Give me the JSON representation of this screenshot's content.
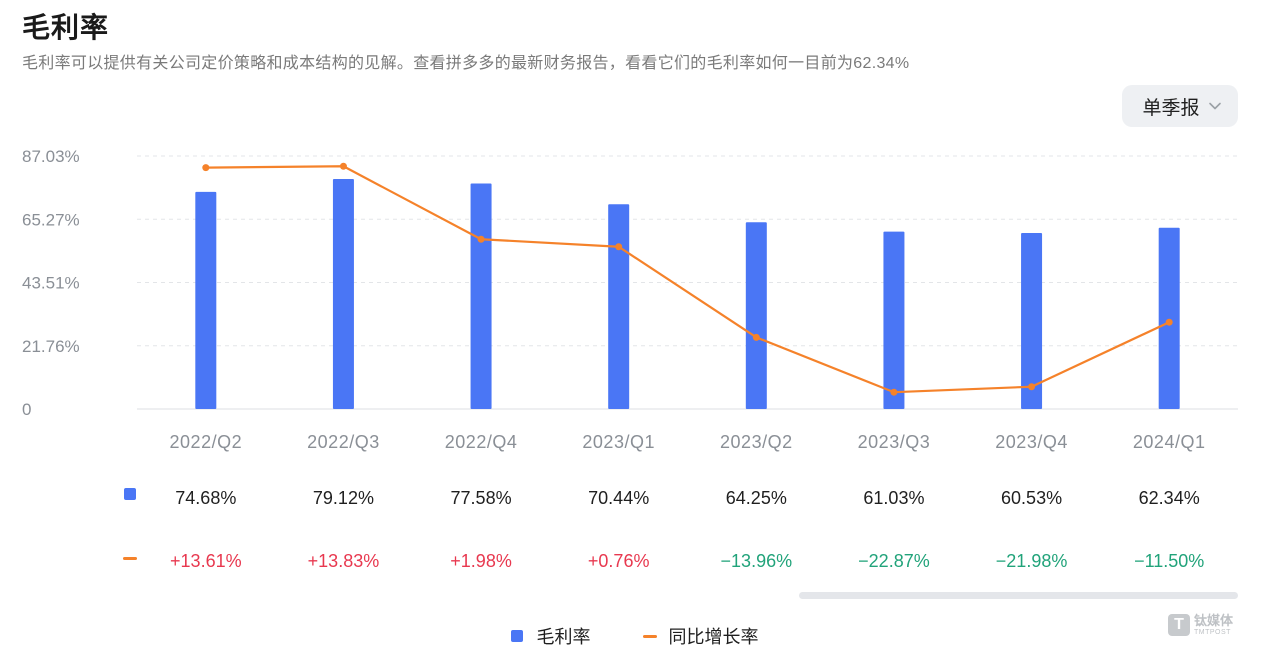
{
  "header": {
    "title": "毛利率",
    "subtitle": "毛利率可以提供有关公司定价策略和成本结构的见解。查看拼多多的最新财务报告，看看它们的毛利率如何一目前为62.34%"
  },
  "period_select": {
    "value": "单季报",
    "icon": "chevron-down-icon"
  },
  "colors": {
    "bar": "#4a76f5",
    "line": "#f5822a",
    "positive": "#e8384f",
    "negative": "#21a37a",
    "grid": "#e3e5e8",
    "axis_text": "#8a8f96"
  },
  "chart_data": {
    "type": "bar",
    "categories": [
      "2022/Q2",
      "2022/Q3",
      "2022/Q4",
      "2023/Q1",
      "2023/Q2",
      "2023/Q3",
      "2023/Q4",
      "2024/Q1"
    ],
    "y_ticks": [
      "0",
      "21.76%",
      "43.51%",
      "65.27%",
      "87.03%"
    ],
    "ylim": [
      0,
      87.03
    ],
    "grid": true,
    "legend_placement": "bottom-center",
    "series": [
      {
        "name": "毛利率",
        "type": "bar",
        "values": [
          74.68,
          79.12,
          77.58,
          70.44,
          64.25,
          61.03,
          60.53,
          62.34
        ],
        "labels": [
          "74.68%",
          "79.12%",
          "77.58%",
          "70.44%",
          "64.25%",
          "61.03%",
          "60.53%",
          "62.34%"
        ]
      },
      {
        "name": "同比增长率",
        "type": "line",
        "values": [
          13.61,
          13.83,
          1.98,
          0.76,
          -13.96,
          -22.87,
          -21.98,
          -11.5
        ],
        "labels": [
          "+13.61%",
          "+13.83%",
          "+1.98%",
          "+0.76%",
          "−13.96%",
          "−22.87%",
          "−21.98%",
          "−11.50%"
        ],
        "secondary_axis_range": [
          -25.6,
          15.5
        ]
      }
    ]
  },
  "legend": {
    "bar_label": "毛利率",
    "line_label": "同比增长率"
  },
  "watermark": {
    "cn": "钛媒体",
    "en": "TMTPOST"
  }
}
